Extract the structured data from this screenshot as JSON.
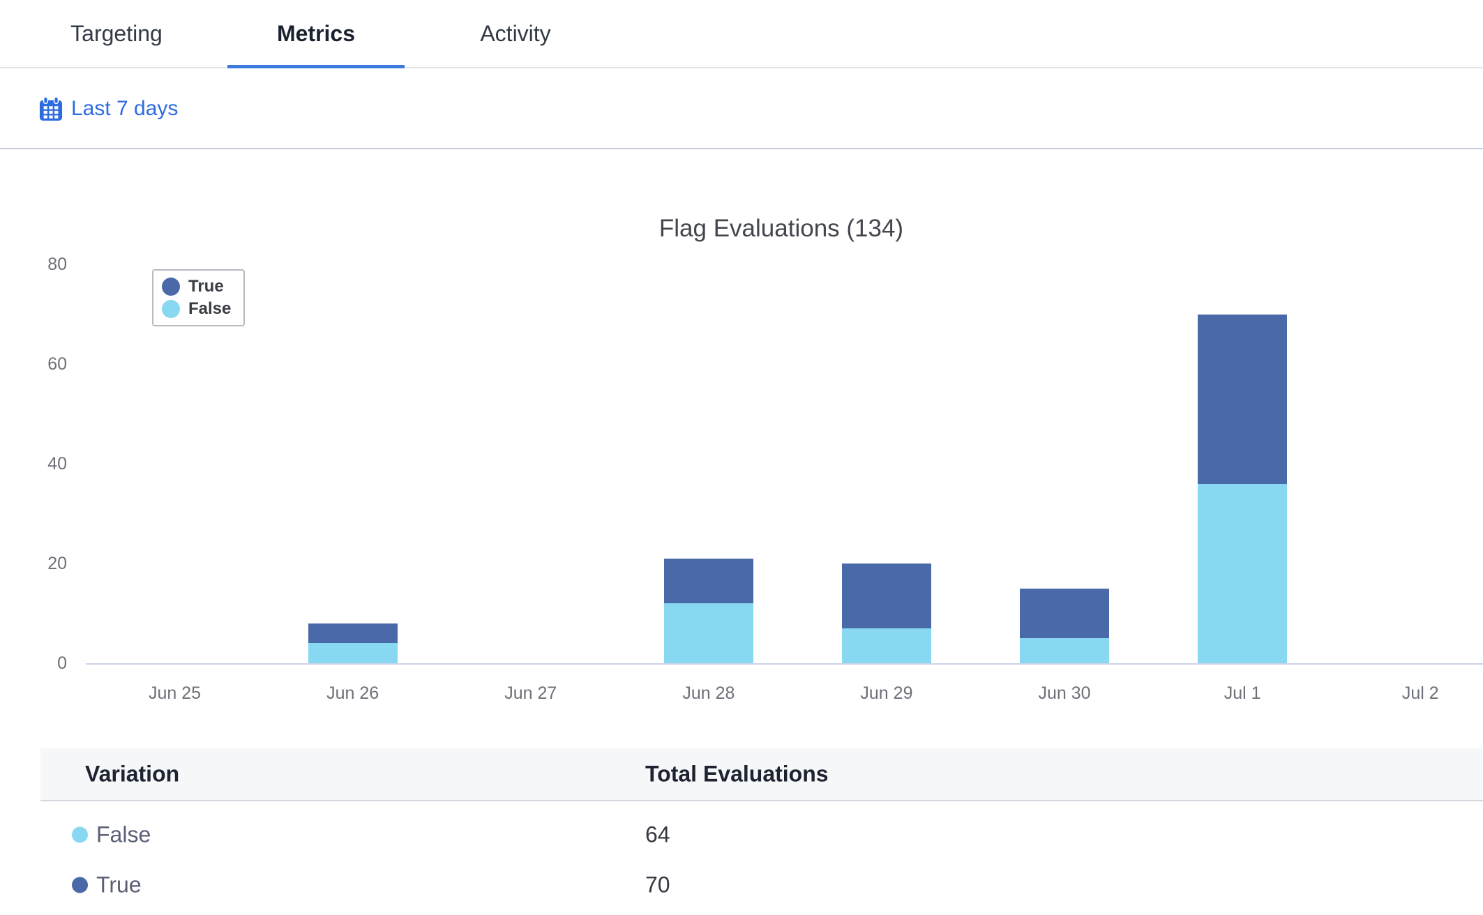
{
  "tabs": [
    {
      "label": "Targeting",
      "active": false
    },
    {
      "label": "Metrics",
      "active": true
    },
    {
      "label": "Activity",
      "active": false
    }
  ],
  "date_filter": {
    "label": "Last 7 days",
    "icon": "calendar-icon",
    "accent_color": "#2D6BE0"
  },
  "chart_data": {
    "type": "bar",
    "stacked": true,
    "title": "Flag Evaluations (134)",
    "total_evaluations": 134,
    "categories": [
      "Jun 25",
      "Jun 26",
      "Jun 27",
      "Jun 28",
      "Jun 29",
      "Jun 30",
      "Jul 1",
      "Jul 2"
    ],
    "series": [
      {
        "name": "True",
        "color": "#4A69A8",
        "values": [
          0,
          4,
          0,
          9,
          13,
          10,
          34,
          0
        ]
      },
      {
        "name": "False",
        "color": "#87D8F0",
        "values": [
          0,
          4,
          0,
          12,
          7,
          5,
          36,
          0
        ]
      }
    ],
    "stack_order_bottom_to_top": [
      "False",
      "True"
    ],
    "ylim": [
      0,
      80
    ],
    "yticks": [
      0,
      20,
      40,
      60,
      80
    ],
    "grid": false,
    "legend_position": "top-left",
    "axis_label_color": "#6E7079",
    "axis_line_color": "#CCD3E8"
  },
  "table": {
    "headers": [
      "Variation",
      "Total Evaluations"
    ],
    "rows": [
      {
        "label": "False",
        "color": "#87D8F0",
        "value": "64"
      },
      {
        "label": "True",
        "color": "#4A69A8",
        "value": "70"
      }
    ]
  }
}
